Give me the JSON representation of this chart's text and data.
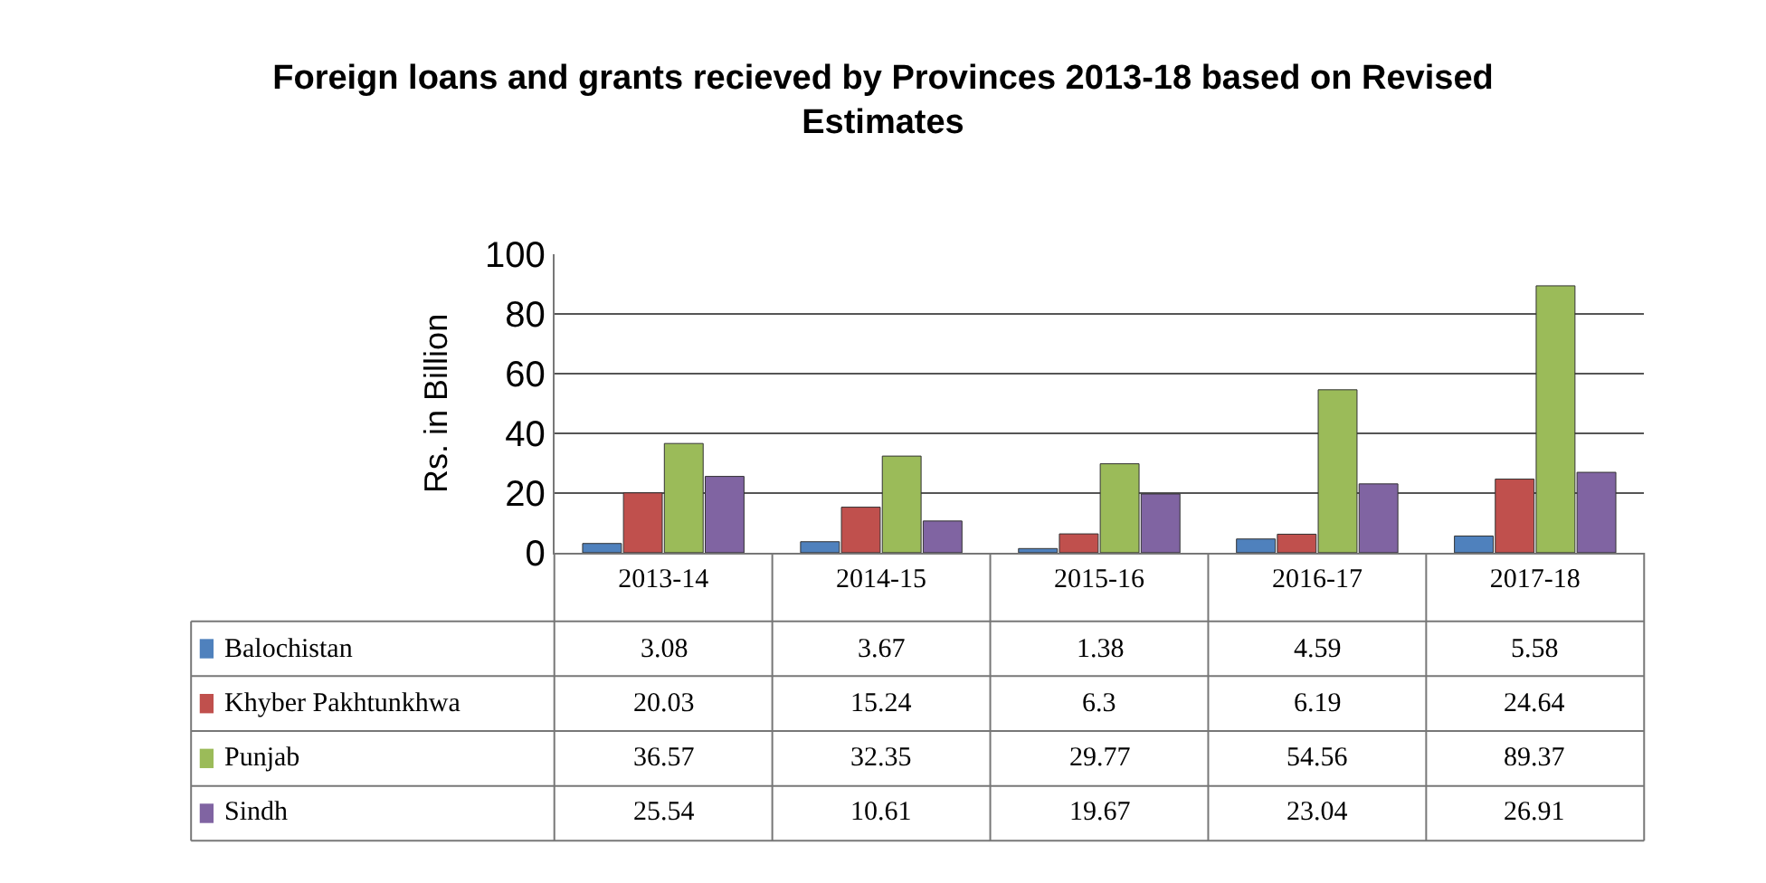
{
  "chart_data": {
    "type": "bar",
    "title": "Foreign loans and grants recieved by Provinces 2013-18 based on Revised Estimates",
    "ylabel": "Rs. in Billion",
    "categories": [
      "2013-14",
      "2014-15",
      "2015-16",
      "2016-17",
      "2017-18"
    ],
    "series": [
      {
        "name": "Balochistan",
        "color": "#4f81bd",
        "values": [
          3.08,
          3.67,
          1.38,
          4.59,
          5.58
        ]
      },
      {
        "name": "Khyber Pakhtunkhwa",
        "color": "#c0504d",
        "values": [
          20.03,
          15.24,
          6.3,
          6.19,
          24.64
        ]
      },
      {
        "name": "Punjab",
        "color": "#9bbb59",
        "values": [
          36.57,
          32.35,
          29.77,
          54.56,
          89.37
        ]
      },
      {
        "name": "Sindh",
        "color": "#8064a2",
        "values": [
          25.54,
          10.61,
          19.67,
          23.04,
          26.91
        ]
      }
    ],
    "ylim": [
      0,
      100
    ],
    "yticks": [
      0,
      20,
      40,
      60,
      80,
      100
    ],
    "grid": "y",
    "legend": "bottom left",
    "data_labels": true
  }
}
